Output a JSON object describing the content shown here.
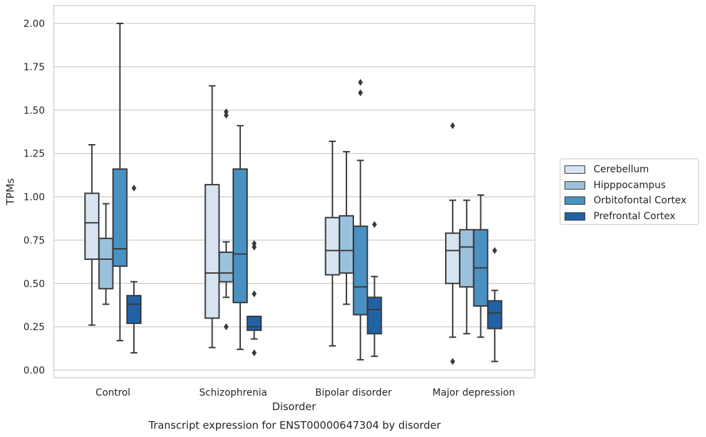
{
  "chart_data": {
    "type": "box",
    "title": "Transcript expression for ENST00000647304 by disorder",
    "xlabel": "Disorder",
    "ylabel": "TPMs",
    "ylim": [
      -0.04,
      2.1
    ],
    "yticks": [
      "0.00",
      "0.25",
      "0.50",
      "0.75",
      "1.00",
      "1.25",
      "1.50",
      "1.75",
      "2.00"
    ],
    "grid": "horizontal",
    "legend_position": "right",
    "categories": [
      "Control",
      "Schizophrenia",
      "Bipolar disorder",
      "Major depression"
    ],
    "series": [
      {
        "name": "Cerebellum",
        "color": "#d6e4f2",
        "boxes": [
          {
            "whisker_low": 0.26,
            "q1": 0.64,
            "median": 0.85,
            "q3": 1.02,
            "whisker_high": 1.3,
            "outliers": []
          },
          {
            "whisker_low": 0.13,
            "q1": 0.3,
            "median": 0.56,
            "q3": 1.07,
            "whisker_high": 1.64,
            "outliers": []
          },
          {
            "whisker_low": 0.14,
            "q1": 0.55,
            "median": 0.69,
            "q3": 0.88,
            "whisker_high": 1.32,
            "outliers": []
          },
          {
            "whisker_low": 0.19,
            "q1": 0.5,
            "median": 0.69,
            "q3": 0.79,
            "whisker_high": 0.98,
            "outliers": [
              1.41,
              0.05
            ]
          }
        ]
      },
      {
        "name": "Hipppocampus",
        "color": "#9ac2dc",
        "boxes": [
          {
            "whisker_low": 0.38,
            "q1": 0.47,
            "median": 0.64,
            "q3": 0.76,
            "whisker_high": 0.96,
            "outliers": []
          },
          {
            "whisker_low": 0.42,
            "q1": 0.51,
            "median": 0.56,
            "q3": 0.68,
            "whisker_high": 0.74,
            "outliers": [
              1.49,
              1.47,
              0.25
            ]
          },
          {
            "whisker_low": 0.38,
            "q1": 0.56,
            "median": 0.69,
            "q3": 0.89,
            "whisker_high": 1.26,
            "outliers": []
          },
          {
            "whisker_low": 0.21,
            "q1": 0.48,
            "median": 0.71,
            "q3": 0.81,
            "whisker_high": 0.98,
            "outliers": []
          }
        ]
      },
      {
        "name": "Orbitofontal Cortex",
        "color": "#4a91c3",
        "boxes": [
          {
            "whisker_low": 0.17,
            "q1": 0.6,
            "median": 0.7,
            "q3": 1.16,
            "whisker_high": 2.0,
            "outliers": []
          },
          {
            "whisker_low": 0.12,
            "q1": 0.39,
            "median": 0.67,
            "q3": 1.16,
            "whisker_high": 1.41,
            "outliers": []
          },
          {
            "whisker_low": 0.06,
            "q1": 0.32,
            "median": 0.48,
            "q3": 0.83,
            "whisker_high": 1.21,
            "outliers": [
              1.66,
              1.6
            ]
          },
          {
            "whisker_low": 0.19,
            "q1": 0.37,
            "median": 0.59,
            "q3": 0.81,
            "whisker_high": 1.01,
            "outliers": []
          }
        ]
      },
      {
        "name": "Prefrontal Cortex",
        "color": "#2062a8",
        "boxes": [
          {
            "whisker_low": 0.1,
            "q1": 0.27,
            "median": 0.38,
            "q3": 0.43,
            "whisker_high": 0.51,
            "outliers": [
              1.05
            ]
          },
          {
            "whisker_low": 0.18,
            "q1": 0.23,
            "median": 0.25,
            "q3": 0.31,
            "whisker_high": 0.31,
            "outliers": [
              0.73,
              0.71,
              0.44,
              0.1
            ]
          },
          {
            "whisker_low": 0.08,
            "q1": 0.21,
            "median": 0.35,
            "q3": 0.42,
            "whisker_high": 0.54,
            "outliers": [
              0.84
            ]
          },
          {
            "whisker_low": 0.05,
            "q1": 0.24,
            "median": 0.33,
            "q3": 0.4,
            "whisker_high": 0.46,
            "outliers": [
              0.69
            ]
          }
        ]
      }
    ]
  }
}
